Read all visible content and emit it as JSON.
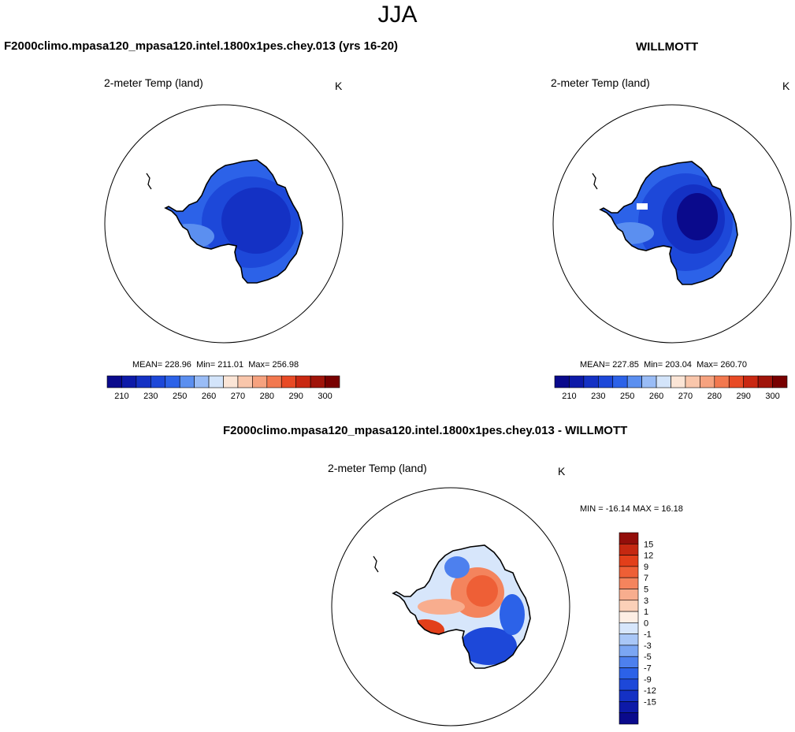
{
  "season": "JJA",
  "colors": {
    "cold_scale": [
      "#0a0a8c",
      "#0d1aa8",
      "#1431c4",
      "#1d48d9",
      "#2c62e8",
      "#5b8ff0",
      "#99bcf6",
      "#d3e4fa",
      "#fbe5d6",
      "#f9c6ab",
      "#f6a27f",
      "#f2784f",
      "#e84a25",
      "#c92812",
      "#a0140a",
      "#780000"
    ],
    "diff_scale": [
      "#0a0a8c",
      "#0d1aa8",
      "#1431c4",
      "#1d48d9",
      "#2c62e8",
      "#4d80ee",
      "#7ba6f3",
      "#a9c7f7",
      "#d7e6fb",
      "#fdeee4",
      "#fbd0b8",
      "#f8ad8e",
      "#f4845d",
      "#ee5f36",
      "#e23f1a",
      "#c52811",
      "#930e0a"
    ]
  },
  "panels": [
    {
      "id": "model",
      "case_title": "F2000climo.mpasa120_mpasa120.intel.1800x1pes.chey.013 (yrs 16-20)",
      "variable": "2-meter Temp (land)",
      "units": "K",
      "stats": {
        "mean_label": "MEAN=",
        "mean": "228.96",
        "min_label": "Min=",
        "min": "211.01",
        "max_label": "Max=",
        "max": "256.98"
      },
      "colorbar_ticks": [
        "210",
        "230",
        "250",
        "260",
        "270",
        "280",
        "290",
        "300"
      ]
    },
    {
      "id": "obs",
      "case_title": "WILLMOTT",
      "variable": "2-meter Temp (land)",
      "units": "K",
      "stats": {
        "mean_label": "MEAN=",
        "mean": "227.85",
        "min_label": "Min=",
        "min": "203.04",
        "max_label": "Max=",
        "max": "260.70"
      },
      "colorbar_ticks": [
        "210",
        "230",
        "250",
        "260",
        "270",
        "280",
        "290",
        "300"
      ]
    },
    {
      "id": "diff",
      "case_title": "F2000climo.mpasa120_mpasa120.intel.1800x1pes.chey.013 - WILLMOTT",
      "variable": "2-meter Temp (land)",
      "units": "K",
      "stats_line": "MIN = -16.14 MAX =  16.18",
      "colorbar_ticks": [
        "15",
        "12",
        "9",
        "7",
        "5",
        "3",
        "1",
        "0",
        "-1",
        "-3",
        "-5",
        "-7",
        "-9",
        "-12",
        "-15"
      ]
    }
  ]
}
